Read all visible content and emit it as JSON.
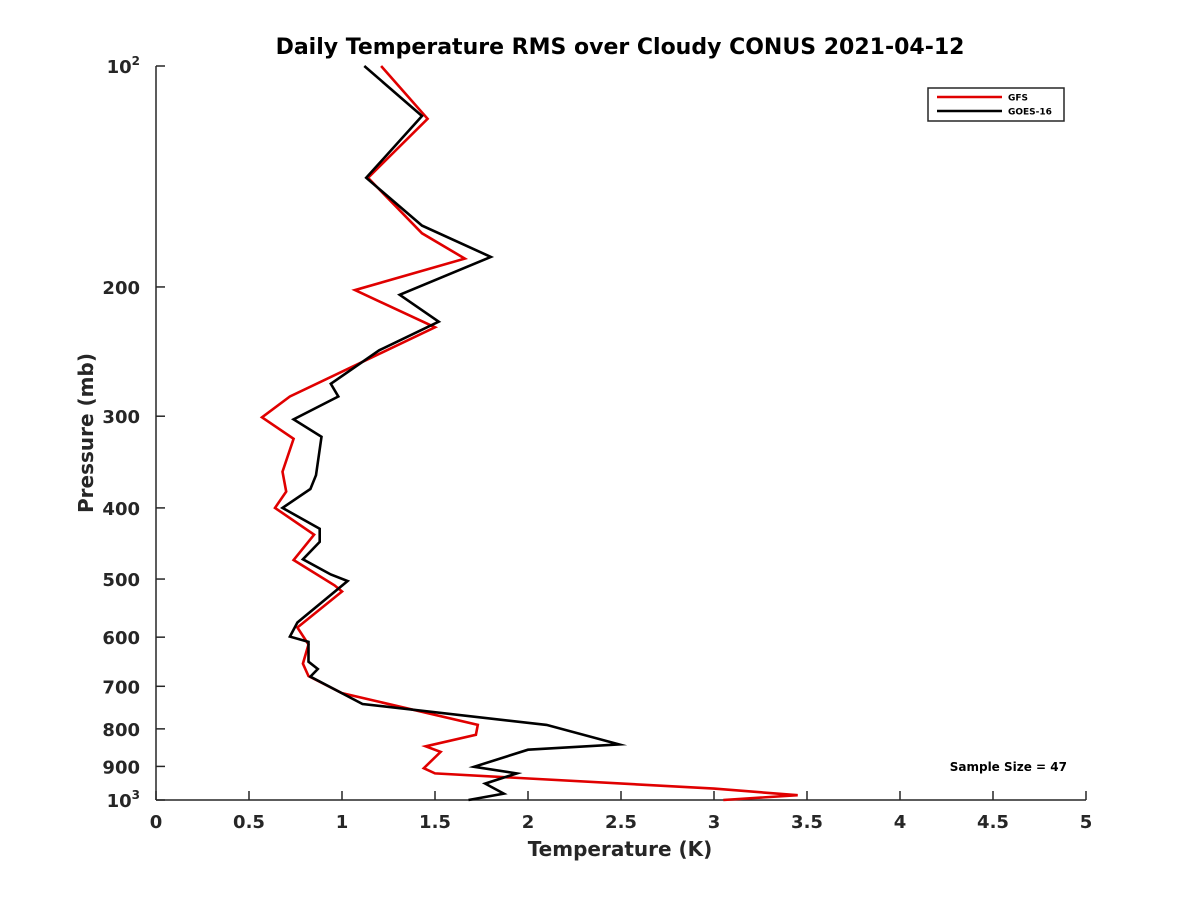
{
  "chart_data": {
    "type": "line",
    "title": "Daily Temperature RMS over Cloudy CONUS 2021-04-12",
    "xlabel": "Temperature (K)",
    "ylabel": "Pressure (mb)",
    "xlim": [
      0,
      5
    ],
    "ylim": [
      100,
      1000
    ],
    "y_scale": "log",
    "y_reversed": true,
    "xticks": [
      0,
      0.5,
      1,
      1.5,
      2,
      2.5,
      3,
      3.5,
      4,
      4.5,
      5
    ],
    "xtick_labels": [
      "0",
      "0.5",
      "1",
      "1.5",
      "2",
      "2.5",
      "3",
      "3.5",
      "4",
      "4.5",
      "5"
    ],
    "yticks": [
      {
        "value": 100,
        "base": "10",
        "exp": "2"
      },
      {
        "value": 200,
        "label": "200"
      },
      {
        "value": 300,
        "label": "300"
      },
      {
        "value": 400,
        "label": "400"
      },
      {
        "value": 500,
        "label": "500"
      },
      {
        "value": 600,
        "label": "600"
      },
      {
        "value": 700,
        "label": "700"
      },
      {
        "value": 800,
        "label": "800"
      },
      {
        "value": 900,
        "label": "900"
      },
      {
        "value": 1000,
        "base": "10",
        "exp": "3"
      }
    ],
    "grid": false,
    "legend_position": "top-right",
    "annotation": "Sample Size = 47",
    "series": [
      {
        "name": "GFS",
        "color": "#e00000",
        "points": [
          [
            1.21,
            100
          ],
          [
            1.46,
            118
          ],
          [
            1.14,
            142
          ],
          [
            1.43,
            169
          ],
          [
            1.66,
            183
          ],
          [
            1.07,
            202
          ],
          [
            1.5,
            227
          ],
          [
            0.72,
            282
          ],
          [
            0.57,
            301
          ],
          [
            0.74,
            322
          ],
          [
            0.68,
            357
          ],
          [
            0.7,
            380
          ],
          [
            0.64,
            400
          ],
          [
            0.85,
            435
          ],
          [
            0.74,
            471
          ],
          [
            0.96,
            510
          ],
          [
            1.0,
            520
          ],
          [
            0.76,
            582
          ],
          [
            0.82,
            614
          ],
          [
            0.79,
            652
          ],
          [
            0.82,
            678
          ],
          [
            1.0,
            715
          ],
          [
            1.73,
            790
          ],
          [
            1.72,
            815
          ],
          [
            1.45,
            845
          ],
          [
            1.53,
            860
          ],
          [
            1.44,
            905
          ],
          [
            1.5,
            920
          ],
          [
            3.0,
            965
          ],
          [
            3.45,
            985
          ],
          [
            3.05,
            1000
          ]
        ]
      },
      {
        "name": "GOES-16",
        "color": "#000000",
        "points": [
          [
            1.12,
            100
          ],
          [
            1.43,
            117
          ],
          [
            1.13,
            142
          ],
          [
            1.43,
            165
          ],
          [
            1.8,
            182
          ],
          [
            1.31,
            205
          ],
          [
            1.52,
            223
          ],
          [
            1.2,
            244
          ],
          [
            0.94,
            271
          ],
          [
            0.98,
            282
          ],
          [
            0.74,
            303
          ],
          [
            0.89,
            320
          ],
          [
            0.86,
            361
          ],
          [
            0.83,
            377
          ],
          [
            0.68,
            400
          ],
          [
            0.88,
            427
          ],
          [
            0.88,
            445
          ],
          [
            0.79,
            470
          ],
          [
            0.94,
            493
          ],
          [
            1.03,
            503
          ],
          [
            0.76,
            573
          ],
          [
            0.72,
            599
          ],
          [
            0.82,
            609
          ],
          [
            0.82,
            648
          ],
          [
            0.87,
            663
          ],
          [
            0.83,
            679
          ],
          [
            1.11,
            740
          ],
          [
            2.1,
            790
          ],
          [
            2.49,
            840
          ],
          [
            2.0,
            854
          ],
          [
            1.71,
            901
          ],
          [
            1.94,
            920
          ],
          [
            1.77,
            950
          ],
          [
            1.87,
            980
          ],
          [
            1.68,
            1000
          ]
        ]
      }
    ]
  }
}
